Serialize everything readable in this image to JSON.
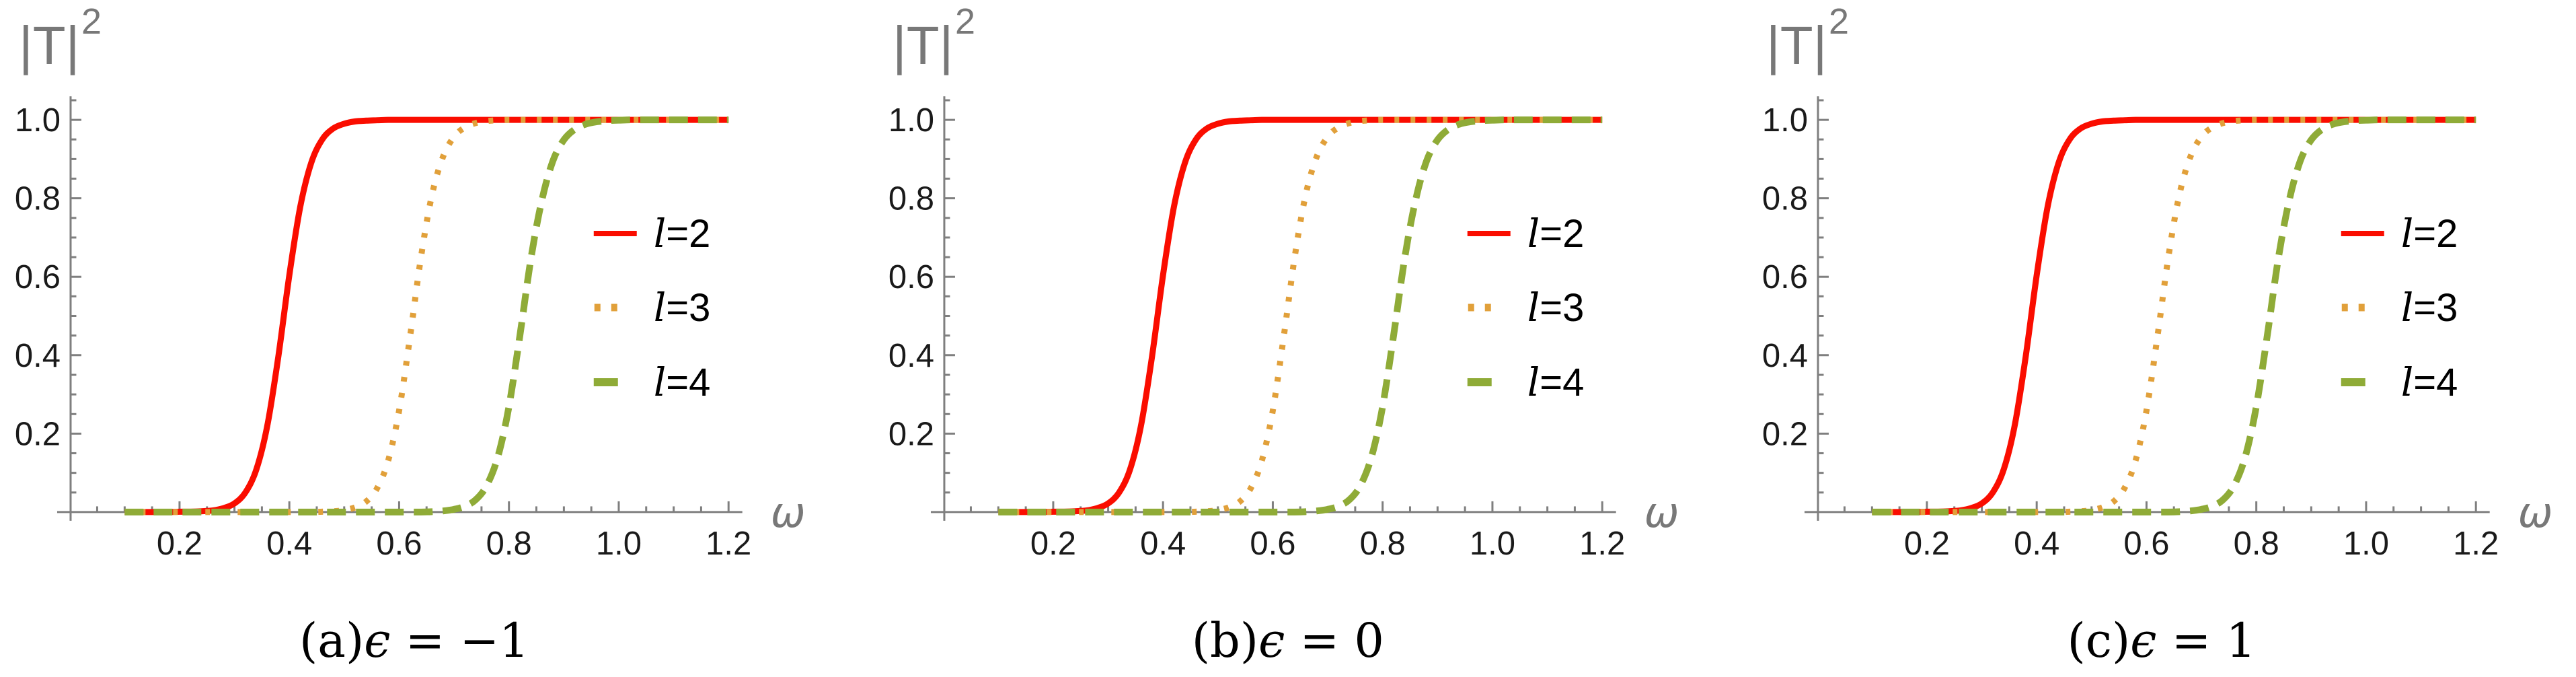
{
  "figure": {
    "background": "#ffffff",
    "axis_color": "#7f7f7f",
    "axis_label_color": "#787878",
    "tick_label_color": "#1a1a1a",
    "caption_color": "#000000"
  },
  "chart_data": {
    "type": "line",
    "title": "",
    "xlabel": "ω",
    "ylabel_base": "|T|",
    "ylabel_sup": "2",
    "xlim": [
      0.05,
      1.25
    ],
    "ylim": [
      0,
      1.05
    ],
    "grid": false,
    "axes_style": "axes-only-no-frame, ticks inside",
    "legend_position": "inside-right-middle",
    "x_ticks": [
      0.2,
      0.4,
      0.6,
      0.8,
      1.0,
      1.2
    ],
    "x_tick_labels": [
      "0.2",
      "0.4",
      "0.6",
      "0.8",
      "1.0",
      "1.2"
    ],
    "y_ticks": [
      0.2,
      0.4,
      0.6,
      0.8,
      1.0
    ],
    "y_tick_labels": [
      "0.2",
      "0.4",
      "0.6",
      "0.8",
      "1.0"
    ],
    "minor_tick_step": 0.05,
    "x": [
      0.1,
      0.12,
      0.14,
      0.16,
      0.18,
      0.2,
      0.22,
      0.24,
      0.26,
      0.28,
      0.3,
      0.32,
      0.34,
      0.36,
      0.38,
      0.4,
      0.42,
      0.44,
      0.46,
      0.48,
      0.5,
      0.52,
      0.54,
      0.56,
      0.58,
      0.6,
      0.62,
      0.64,
      0.66,
      0.68,
      0.7,
      0.72,
      0.74,
      0.76,
      0.78,
      0.8,
      0.82,
      0.84,
      0.86,
      0.88,
      0.9,
      0.92,
      0.94,
      0.96,
      0.98,
      1,
      1.02,
      1.04,
      1.06,
      1.08,
      1.1,
      1.12,
      1.14,
      1.16,
      1.18,
      1.2
    ],
    "series": [
      {
        "name": "l=2",
        "color": "#fa0d00",
        "style": "solid",
        "values": [
          0,
          0,
          0,
          0,
          0,
          0.001,
          0.001,
          0.002,
          0.004,
          0.01,
          0.022,
          0.05,
          0.109,
          0.221,
          0.397,
          0.604,
          0.779,
          0.891,
          0.95,
          0.978,
          0.99,
          0.996,
          0.998,
          0.999,
          1,
          1,
          1,
          1,
          1,
          1,
          1,
          1,
          1,
          1,
          1,
          1,
          1,
          1,
          1,
          1,
          1,
          1,
          1,
          1,
          1,
          1,
          1,
          1,
          1,
          1,
          1,
          1,
          1,
          1,
          1,
          1
        ]
      },
      {
        "name": "l=3",
        "color": "#e1a03a",
        "style": "dotted",
        "values": [
          0,
          0,
          0,
          0,
          0,
          0,
          0,
          0,
          0,
          0,
          0,
          0,
          0,
          0,
          0,
          0,
          0,
          0,
          0.001,
          0.002,
          0.005,
          0.012,
          0.027,
          0.061,
          0.131,
          0.259,
          0.448,
          0.652,
          0.81,
          0.906,
          0.957,
          0.981,
          0.992,
          0.997,
          0.999,
          1,
          1,
          1,
          1,
          1,
          1,
          1,
          1,
          1,
          1,
          1,
          1,
          1,
          1,
          1,
          1,
          1,
          1,
          1,
          1,
          1
        ]
      },
      {
        "name": "l=4",
        "color": "#8fab37",
        "style": "dashed",
        "values": [
          0,
          0,
          0,
          0,
          0,
          0,
          0,
          0,
          0,
          0,
          0,
          0,
          0,
          0,
          0,
          0,
          0,
          0,
          0,
          0,
          0,
          0,
          0,
          0,
          0,
          0,
          0,
          0,
          0.001,
          0.003,
          0.007,
          0.015,
          0.032,
          0.069,
          0.142,
          0.269,
          0.45,
          0.646,
          0.795,
          0.895,
          0.949,
          0.976,
          0.989,
          0.995,
          0.998,
          0.999,
          1,
          1,
          1,
          1,
          1,
          1,
          1,
          1,
          1,
          1
        ],
        "note": "all three panels share these identical curves"
      }
    ],
    "panels": [
      {
        "caption_index": "(a)",
        "caption_symbol": "ϵ",
        "caption_rest": " = −1"
      },
      {
        "caption_index": "(b)",
        "caption_symbol": "ϵ",
        "caption_rest": " = 0"
      },
      {
        "caption_index": "(c)",
        "caption_symbol": "ϵ",
        "caption_rest": " = 1"
      }
    ]
  }
}
